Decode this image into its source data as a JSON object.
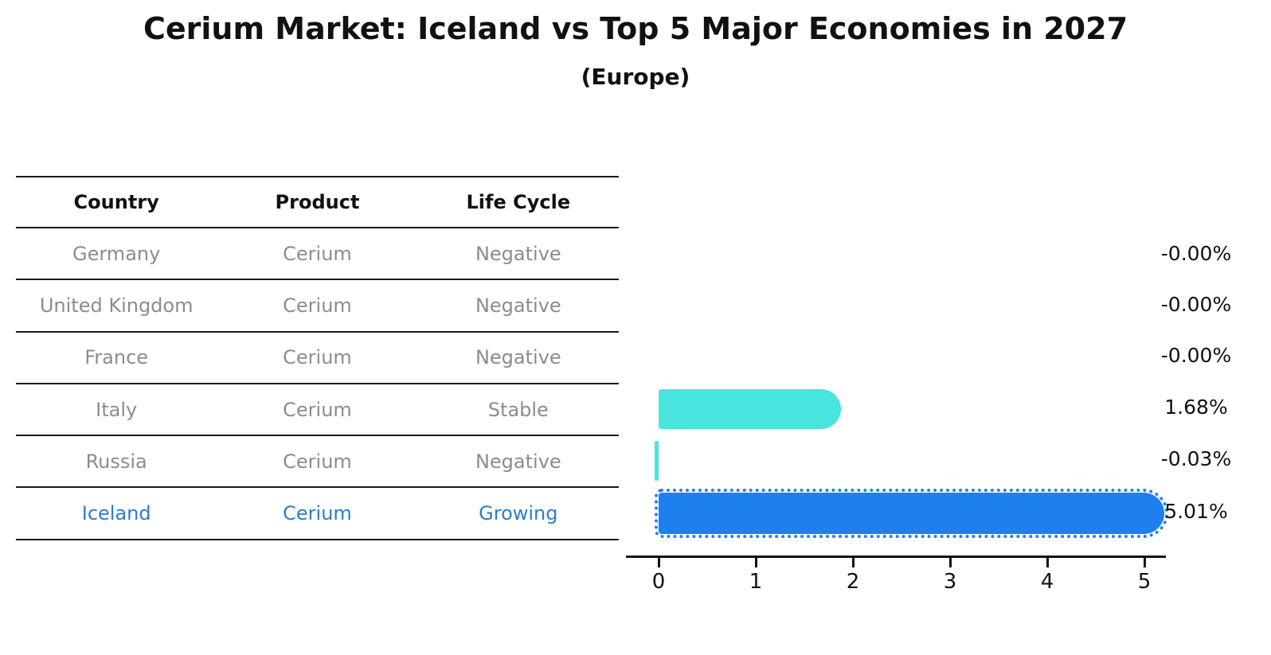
{
  "title": "Cerium Market: Iceland vs Top 5 Major Economies in 2027",
  "subtitle": "(Europe)",
  "table": {
    "headers": [
      "Country",
      "Product",
      "Life Cycle"
    ],
    "rows": [
      {
        "country": "Germany",
        "product": "Cerium",
        "life_cycle": "Negative",
        "highlighted": false
      },
      {
        "country": "United Kingdom",
        "product": "Cerium",
        "life_cycle": "Negative",
        "highlighted": false
      },
      {
        "country": "France",
        "product": "Cerium",
        "life_cycle": "Negative",
        "highlighted": false
      },
      {
        "country": "Italy",
        "product": "Cerium",
        "life_cycle": "Stable",
        "highlighted": false
      },
      {
        "country": "Russia",
        "product": "Cerium",
        "life_cycle": "Negative",
        "highlighted": false
      },
      {
        "country": "Iceland",
        "product": "Cerium",
        "life_cycle": "Growing",
        "highlighted": true
      }
    ]
  },
  "chart_data": {
    "type": "bar",
    "orientation": "horizontal",
    "title": "Cerium Market: Iceland vs Top 5 Major Economies in 2027",
    "subtitle": "(Europe)",
    "categories": [
      "Germany",
      "United Kingdom",
      "France",
      "Italy",
      "Russia",
      "Iceland"
    ],
    "values": [
      -0.0,
      -0.0,
      -0.0,
      1.68,
      -0.03,
      5.01
    ],
    "value_labels": [
      "-0.00%",
      "-0.00%",
      "-0.00%",
      "1.68%",
      "-0.03%",
      "5.01%"
    ],
    "xlabel": "",
    "ylabel": "",
    "xticks": [
      "0",
      "1",
      "2",
      "3",
      "4",
      "5"
    ],
    "xlim": [
      0,
      5.25
    ],
    "grid": false,
    "legend_position": "none",
    "highlight_index": 5,
    "bar_colors": [
      "#48e5de",
      "#48e5de",
      "#48e5de",
      "#48e5de",
      "#48e5de",
      "#1e80ee"
    ]
  },
  "colors": {
    "regular_bar": "#48e5de",
    "highlight_bar": "#1e80ee",
    "highlight_row_text": "#2d7dc9",
    "table_row_text": "#8c8c8c",
    "heading_text": "#111111",
    "axis": "#111111",
    "background": "#ffffff"
  }
}
